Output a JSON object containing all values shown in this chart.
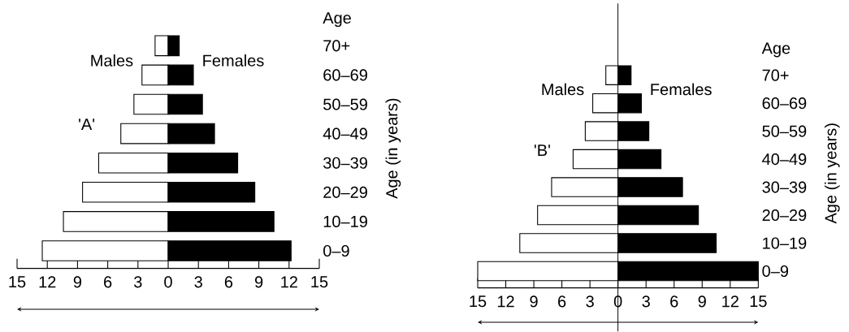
{
  "chart_data": [
    {
      "type": "bar",
      "orientation": "horizontal",
      "categories": [
        "70+",
        "60–69",
        "50–59",
        "40–49",
        "30–39",
        "20–29",
        "10–19",
        "0–9"
      ],
      "series": [
        {
          "name": "Males",
          "color": "#ffffff",
          "values": [
            -1.3,
            -2.6,
            -3.4,
            -4.7,
            -6.9,
            -8.5,
            -10.4,
            -12.5
          ]
        },
        {
          "name": "Females",
          "color": "#000000",
          "values": [
            1.1,
            2.5,
            3.4,
            4.6,
            6.9,
            8.6,
            10.5,
            12.2
          ]
        }
      ],
      "xlim": [
        -15,
        15
      ],
      "xticks": [
        {
          "value": -15,
          "label": "15"
        },
        {
          "value": -12,
          "label": "12"
        },
        {
          "value": -9,
          "label": "9"
        },
        {
          "value": -6,
          "label": "6"
        },
        {
          "value": -3,
          "label": "3"
        },
        0,
        3,
        6,
        9,
        12,
        15
      ],
      "ylabel": "Age (in years)",
      "stacked": true,
      "annotations": [
        "Age",
        "'A'"
      ]
    },
    {
      "type": "bar",
      "orientation": "horizontal",
      "categories": [
        "70+",
        "60–69",
        "50–59",
        "40–49",
        "30–39",
        "20–29",
        "10–19",
        "0–9"
      ],
      "series": [
        {
          "name": "Males",
          "color": "#ffffff",
          "values": [
            -1.3,
            -2.7,
            -3.5,
            -4.8,
            -7.1,
            -8.6,
            -10.5,
            -15
          ]
        },
        {
          "name": "Females",
          "color": "#000000",
          "values": [
            1.4,
            2.5,
            3.3,
            4.6,
            6.9,
            8.6,
            10.5,
            15
          ]
        }
      ],
      "xlim": [
        -15,
        15
      ],
      "xticks": [
        {
          "value": -15,
          "label": "15"
        },
        {
          "value": -12,
          "label": "12"
        },
        {
          "value": -9,
          "label": "9"
        },
        {
          "value": -6,
          "label": "6"
        },
        {
          "value": -3,
          "label": "3"
        },
        0,
        3,
        6,
        9,
        12,
        15
      ],
      "ylabel": "Age (in years)",
      "stacked": true,
      "ref_lines": [
        {
          "axis": "x",
          "value": 0
        }
      ],
      "annotations": [
        "Age",
        "'B'"
      ]
    }
  ]
}
